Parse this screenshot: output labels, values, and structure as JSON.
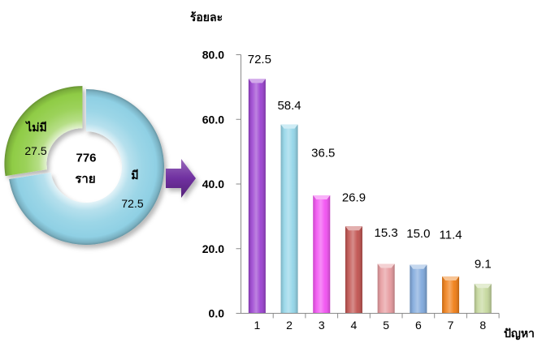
{
  "chart_data": [
    {
      "type": "pie",
      "donut": true,
      "center_text": {
        "count": "776",
        "unit": "ราย"
      },
      "slices": [
        {
          "label": "มี",
          "value": 72.5,
          "value_label": "72.5",
          "color": "#8fd0e4"
        },
        {
          "label": "ไม่มี",
          "value": 27.5,
          "value_label": "27.5",
          "color": "#8fcc45"
        }
      ]
    },
    {
      "type": "bar",
      "ylabel": "ร้อยละ",
      "xlabel": "ปัญหา",
      "categories": [
        "1",
        "2",
        "3",
        "4",
        "5",
        "6",
        "7",
        "8"
      ],
      "values": [
        72.5,
        58.4,
        36.5,
        26.9,
        15.3,
        15.0,
        11.4,
        9.1
      ],
      "value_labels": [
        "72.5",
        "58.4",
        "36.5",
        "26.9",
        "15.3",
        "15.0",
        "11.4",
        "9.1"
      ],
      "colors": [
        "#9a3fd0",
        "#92d5e8",
        "#f24ff2",
        "#c0504d",
        "#e6999d",
        "#7ea8dc",
        "#f07c12",
        "#c4d79b"
      ],
      "ylim": [
        0,
        80
      ],
      "yticks": [
        "0.0",
        "20.0",
        "40.0",
        "60.0",
        "80.0"
      ],
      "grid": false
    }
  ],
  "arrow": {
    "icon": "right-arrow-icon",
    "color": "#7030a0"
  }
}
